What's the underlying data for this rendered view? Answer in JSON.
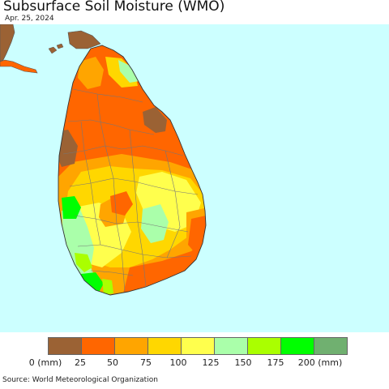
{
  "title": "Subsurface Soil Moisture (WMO)",
  "date": "Apr. 25, 2024",
  "legend": {
    "labels": [
      "0 (mm)",
      "25",
      "50",
      "75",
      "100",
      "125",
      "150",
      "175",
      "200 (mm)"
    ],
    "colors": [
      "#9b6234",
      "#ff6600",
      "#ffa500",
      "#ffd700",
      "#ffff4d",
      "#aaffaa",
      "#aaff00",
      "#00ff00",
      "#70b070"
    ]
  },
  "colors": {
    "sea": "#ccffff",
    "very_dry": "#9b6234",
    "dry": "#ff6600",
    "orange": "#ffa500",
    "gold": "#ffd700",
    "yellow": "#ffff4d",
    "pale_green": "#aaffaa",
    "lime": "#aaff00",
    "green": "#00ff00"
  },
  "source": "Source: World Meteorological Organization"
}
